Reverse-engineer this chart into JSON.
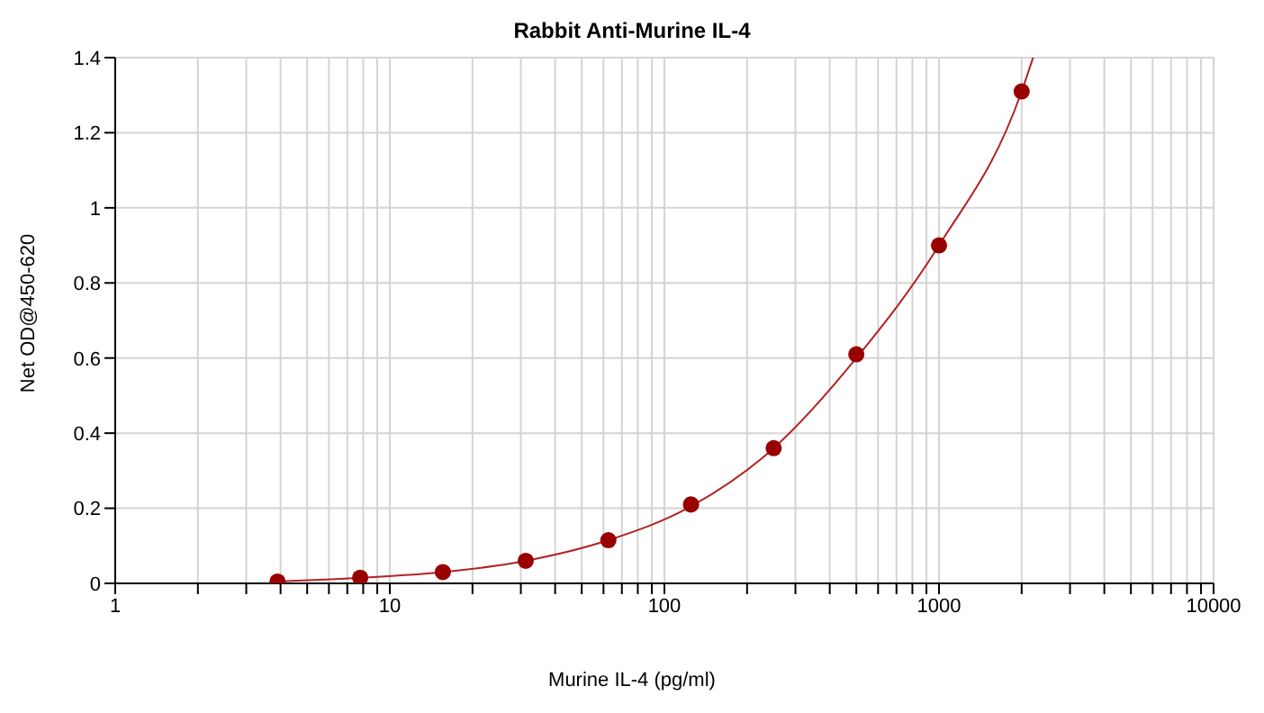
{
  "chart_data": {
    "type": "scatter",
    "title": "Rabbit Anti-Murine IL-4",
    "xlabel": "Murine IL-4 (pg/ml)",
    "ylabel": "Net OD@450-620",
    "log": "x",
    "grid": true,
    "marker": "circle",
    "xlim": [
      1,
      10000
    ],
    "ylim": [
      0,
      1.4
    ],
    "xticks": [
      1,
      {
        "value": 2,
        "label": null
      },
      {
        "value": 3,
        "label": null
      },
      {
        "value": 4,
        "label": null
      },
      {
        "value": 5,
        "label": null
      },
      {
        "value": 6,
        "label": null
      },
      {
        "value": 7,
        "label": null
      },
      {
        "value": 8,
        "label": null
      },
      {
        "value": 9,
        "label": null
      },
      10,
      {
        "value": 20,
        "label": null
      },
      {
        "value": 30,
        "label": null
      },
      {
        "value": 40,
        "label": null
      },
      {
        "value": 50,
        "label": null
      },
      {
        "value": 60,
        "label": null
      },
      {
        "value": 70,
        "label": null
      },
      {
        "value": 80,
        "label": null
      },
      {
        "value": 90,
        "label": null
      },
      100,
      {
        "value": 200,
        "label": null
      },
      {
        "value": 300,
        "label": null
      },
      {
        "value": 400,
        "label": null
      },
      {
        "value": 500,
        "label": null
      },
      {
        "value": 600,
        "label": null
      },
      {
        "value": 700,
        "label": null
      },
      {
        "value": 800,
        "label": null
      },
      {
        "value": 900,
        "label": null
      },
      1000,
      {
        "value": 2000,
        "label": null
      },
      {
        "value": 3000,
        "label": null
      },
      {
        "value": 4000,
        "label": null
      },
      {
        "value": 5000,
        "label": null
      },
      {
        "value": 6000,
        "label": null
      },
      {
        "value": 7000,
        "label": null
      },
      {
        "value": 8000,
        "label": null
      },
      {
        "value": 9000,
        "label": null
      },
      10000
    ],
    "yticks": [
      0,
      0.2,
      0.4,
      0.6,
      0.8,
      1,
      1.2,
      1.4
    ],
    "series": [
      {
        "color": "#990000",
        "x": [
          3.9,
          7.8,
          15.6,
          31.25,
          62.5,
          125,
          250,
          500,
          1000,
          2000
        ],
        "values": [
          0.005,
          0.015,
          0.03,
          0.06,
          0.115,
          0.21,
          0.36,
          0.61,
          0.9,
          1.31
        ]
      },
      {
        "type": "line",
        "color": "#b22222",
        "marker": "none",
        "x": [
          3.9,
          7.8,
          15.6,
          31.25,
          62.5,
          125,
          250,
          500,
          1000,
          2000,
          2200
        ],
        "values": [
          0.005,
          0.015,
          0.03,
          0.06,
          0.115,
          0.205,
          0.36,
          0.6,
          0.9,
          1.31,
          1.4
        ]
      }
    ]
  }
}
